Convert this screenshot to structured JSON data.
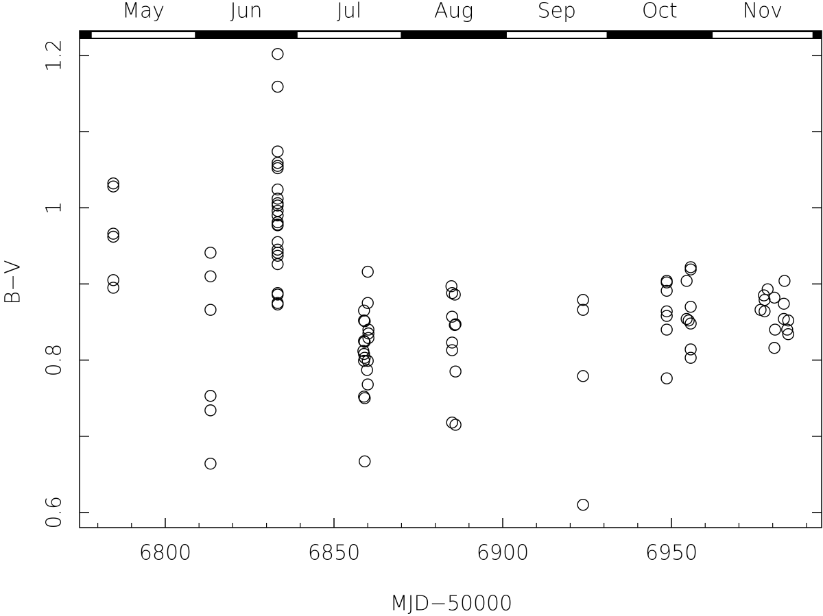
{
  "chart_data": {
    "type": "scatter",
    "x_label": "MJD−50000",
    "y_label": "B−V",
    "xlim": [
      6774.6,
      6994.5
    ],
    "ylim": [
      0.58,
      1.2324
    ],
    "xticks": [
      6800,
      6850,
      6900,
      6950
    ],
    "x_minor_ticks": [
      6780,
      6790,
      6810,
      6820,
      6830,
      6840,
      6860,
      6870,
      6880,
      6890,
      6910,
      6920,
      6930,
      6940,
      6960,
      6970,
      6980,
      6990
    ],
    "yticks": [
      0.6,
      0.8,
      1,
      1.2
    ],
    "y_minor_ticks": [
      0.7,
      0.9,
      1.1
    ],
    "months": [
      "May",
      "Jun",
      "Jul",
      "Aug",
      "Sep",
      "Oct",
      "Nov"
    ],
    "month_edges": [
      6778,
      6809,
      6839,
      6870,
      6901,
      6931,
      6962,
      6992
    ],
    "marker_color": "#000000",
    "x": [
      6784.6,
      6784.6,
      6784.6,
      6784.6,
      6784.6,
      6784.6,
      6813.4,
      6813.4,
      6813.4,
      6813.4,
      6813.4,
      6813.4,
      6833.3,
      6833.3,
      6833.3,
      6833.3,
      6833.3,
      6833.3,
      6833.3,
      6833.3,
      6833.3,
      6833.3,
      6833.3,
      6833.3,
      6833.3,
      6833.3,
      6833.3,
      6833.3,
      6833.3,
      6833.3,
      6833.3,
      6833.3,
      6833.3,
      6833.3,
      6833.3,
      6833.3,
      6860.0,
      6860.0,
      6858.9,
      6858.9,
      6859.1,
      6860.2,
      6860.2,
      6860.2,
      6858.9,
      6859.1,
      6858.7,
      6858.9,
      6859.1,
      6858.9,
      6860.0,
      6859.8,
      6860.0,
      6858.9,
      6859.1,
      6859.1,
      6884.8,
      6885.0,
      6885.8,
      6885.0,
      6886.0,
      6885.8,
      6885.0,
      6885.0,
      6886.0,
      6885.0,
      6886.0,
      6923.8,
      6923.8,
      6923.8,
      6923.8,
      6948.6,
      6948.6,
      6948.6,
      6948.6,
      6948.6,
      6948.6,
      6948.6,
      6955.7,
      6955.7,
      6954.5,
      6955.7,
      6954.5,
      6955.1,
      6955.7,
      6955.7,
      6955.7,
      6976.4,
      6977.6,
      6977.4,
      6978.5,
      6977.6,
      6980.5,
      6983.5,
      6983.3,
      6983.3,
      6984.6,
      6980.7,
      6984.3,
      6984.6,
      6980.5
    ],
    "values": [
      1.032,
      1.028,
      0.966,
      0.962,
      0.905,
      0.895,
      0.941,
      0.91,
      0.866,
      0.753,
      0.734,
      0.664,
      1.202,
      1.159,
      1.074,
      1.059,
      1.055,
      1.052,
      1.024,
      1.012,
      1.006,
      1.003,
      0.996,
      0.99,
      0.981,
      0.978,
      0.977,
      0.955,
      0.945,
      0.941,
      0.937,
      0.926,
      0.888,
      0.886,
      0.875,
      0.873,
      0.916,
      0.875,
      0.865,
      0.852,
      0.851,
      0.84,
      0.835,
      0.829,
      0.825,
      0.824,
      0.812,
      0.808,
      0.803,
      0.799,
      0.799,
      0.787,
      0.768,
      0.752,
      0.75,
      0.667,
      0.897,
      0.888,
      0.886,
      0.857,
      0.847,
      0.846,
      0.823,
      0.813,
      0.785,
      0.718,
      0.715,
      0.879,
      0.866,
      0.779,
      0.61,
      0.904,
      0.902,
      0.891,
      0.864,
      0.858,
      0.84,
      0.776,
      0.922,
      0.919,
      0.904,
      0.87,
      0.854,
      0.852,
      0.848,
      0.814,
      0.803,
      0.866,
      0.864,
      0.885,
      0.893,
      0.879,
      0.882,
      0.904,
      0.874,
      0.854,
      0.852,
      0.84,
      0.84,
      0.834,
      0.816
    ]
  }
}
